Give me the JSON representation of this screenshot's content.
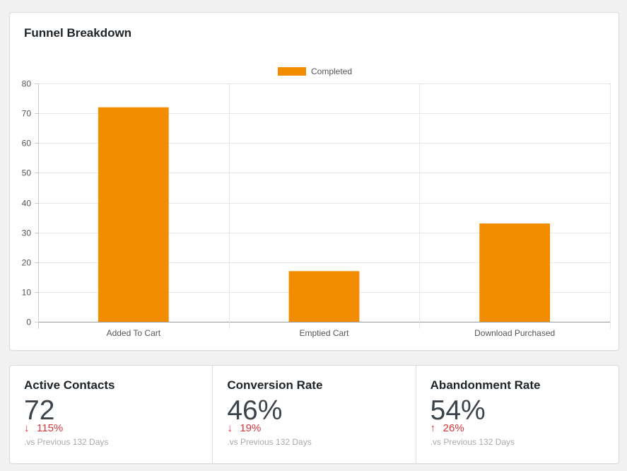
{
  "funnel": {
    "title": "Funnel Breakdown"
  },
  "chart_data": {
    "type": "bar",
    "categories": [
      "Added To Cart",
      "Emptied Cart",
      "Download Purchased"
    ],
    "series": [
      {
        "name": "Completed",
        "values": [
          72,
          17,
          33
        ],
        "color": "#f28c00"
      }
    ],
    "ylim": [
      0,
      80
    ],
    "yticks": [
      0,
      10,
      20,
      30,
      40,
      50,
      60,
      70,
      80
    ],
    "grid": true,
    "legend": "top-center"
  },
  "stats": [
    {
      "label": "Active Contacts",
      "value": "72",
      "arrow": "↓",
      "change": "115%",
      "compare": ".vs Previous 132 Days"
    },
    {
      "label": "Conversion Rate",
      "value": "46%",
      "arrow": "↓",
      "change": "19%",
      "compare": ".vs Previous 132 Days"
    },
    {
      "label": "Abandonment Rate",
      "value": "54%",
      "arrow": "↑",
      "change": "26%",
      "compare": ".vs Previous 132 Days"
    }
  ],
  "colors": {
    "bar": "#f28c00",
    "negative": "#d63638"
  }
}
